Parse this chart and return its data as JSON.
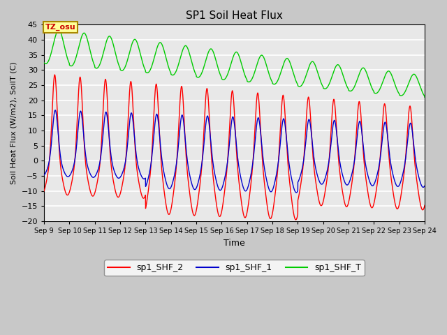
{
  "title": "SP1 Soil Heat Flux",
  "ylabel": "Soil Heat Flux (W/m2), SoilT (C)",
  "xlabel": "Time",
  "ylim": [
    -20,
    45
  ],
  "yticks": [
    -20,
    -15,
    -10,
    -5,
    0,
    5,
    10,
    15,
    20,
    25,
    30,
    35,
    40,
    45
  ],
  "xtick_labels": [
    "Sep 9",
    "Sep 10",
    "Sep 11",
    "Sep 12",
    "Sep 13",
    "Sep 14",
    "Sep 15",
    "Sep 16",
    "Sep 17",
    "Sep 18",
    "Sep 19",
    "Sep 20",
    "Sep 21",
    "Sep 22",
    "Sep 23",
    "Sep 24"
  ],
  "plot_bg_color": "#e8e8e8",
  "grid_color": "white",
  "line_colors": {
    "shf2": "#ff0000",
    "shf1": "#0000cc",
    "shfT": "#00cc00"
  },
  "legend_labels": [
    "sp1_SHF_2",
    "sp1_SHF_1",
    "sp1_SHF_T"
  ],
  "tz_label": "TZ_osu",
  "tz_box_bg": "#ffff99",
  "tz_box_edge": "#aa8800",
  "fig_bg": "#c8c8c8"
}
